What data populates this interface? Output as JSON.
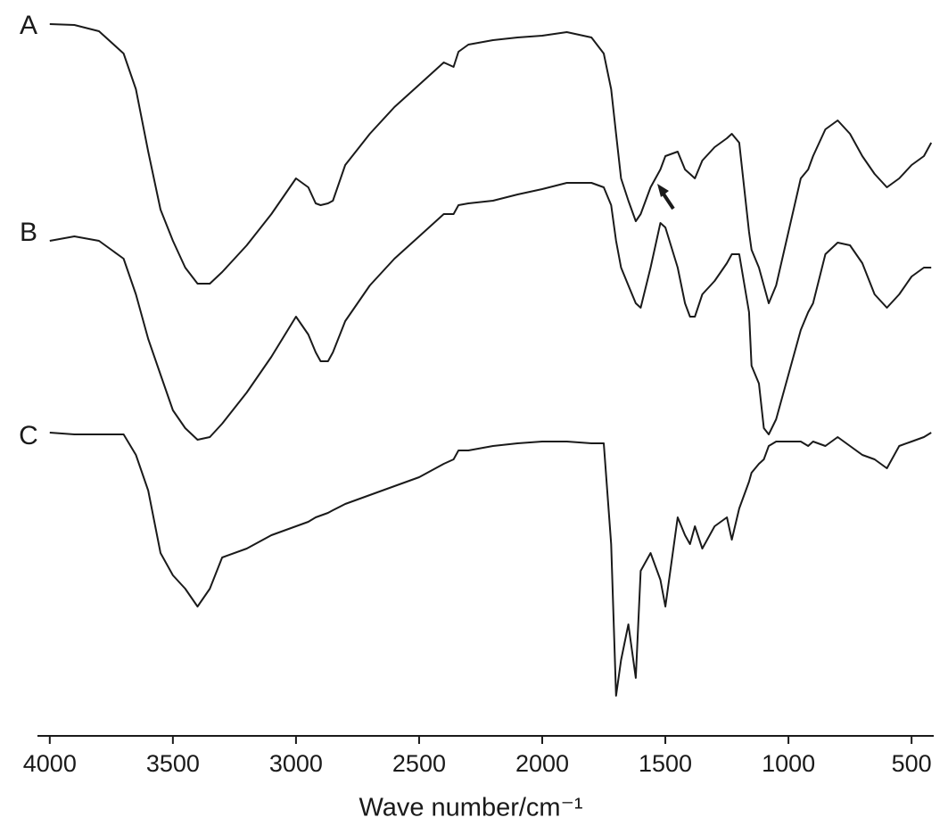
{
  "chart_data": {
    "type": "line",
    "xlabel": "Wave number/cm⁻¹",
    "x": [
      4000,
      3900,
      3800,
      3700,
      3650,
      3600,
      3550,
      3500,
      3450,
      3400,
      3350,
      3300,
      3200,
      3100,
      3000,
      2950,
      2920,
      2900,
      2870,
      2850,
      2800,
      2700,
      2600,
      2500,
      2400,
      2360,
      2340,
      2300,
      2200,
      2100,
      2000,
      1900,
      1800,
      1750,
      1720,
      1700,
      1680,
      1650,
      1620,
      1600,
      1560,
      1520,
      1500,
      1450,
      1420,
      1400,
      1380,
      1350,
      1300,
      1250,
      1230,
      1200,
      1160,
      1150,
      1120,
      1100,
      1080,
      1050,
      1000,
      950,
      920,
      900,
      850,
      800,
      750,
      700,
      650,
      600,
      550,
      500,
      450,
      420
    ],
    "xlim": [
      4050,
      410
    ],
    "xticks": [
      4000,
      3500,
      3000,
      2500,
      2000,
      1500,
      1000,
      500
    ],
    "ylim": [
      0,
      90
    ],
    "grid": false,
    "series": [
      {
        "name": "A",
        "color": "#1a1a1a",
        "values": [
          87.3,
          87.2,
          86.5,
          84,
          80,
          73,
          66.5,
          63,
          60,
          58.2,
          58.2,
          59.5,
          62.5,
          66,
          70,
          69,
          67.2,
          67,
          67.2,
          67.5,
          71.5,
          75,
          78,
          80.5,
          83,
          82.5,
          84.2,
          85,
          85.5,
          85.8,
          86,
          86.4,
          85.8,
          84,
          80,
          75,
          70,
          67.5,
          65.2,
          66,
          69,
          71,
          72.5,
          73,
          71,
          70.5,
          70,
          72,
          73.5,
          74.5,
          75,
          74,
          64,
          62,
          60,
          58,
          56,
          58,
          64,
          70,
          71,
          72.5,
          75.5,
          76.5,
          75,
          72.5,
          70.5,
          69,
          70,
          71.5,
          72.5,
          74
        ]
      },
      {
        "name": "B",
        "color": "#1a1a1a",
        "values": [
          63,
          63.5,
          63,
          61,
          57,
          52,
          48,
          44,
          42,
          40.7,
          41,
          42.5,
          46,
          50,
          54.5,
          52.5,
          50.5,
          49.5,
          49.5,
          50.5,
          54,
          58,
          61,
          63.5,
          66,
          66,
          67,
          67.2,
          67.5,
          68.2,
          68.8,
          69.5,
          69.5,
          69,
          67,
          63,
          60,
          58,
          56,
          55.5,
          60,
          65,
          64.5,
          60,
          56,
          54.5,
          54.5,
          57,
          58.5,
          60.5,
          61.5,
          61.5,
          55,
          49,
          47,
          42,
          41.3,
          43,
          48,
          53,
          55,
          56,
          61.5,
          62.8,
          62.5,
          60.5,
          57,
          55.5,
          57,
          59,
          60,
          60
        ]
      },
      {
        "name": "C",
        "color": "#1a1a1a",
        "values": [
          41.5,
          41.3,
          41.3,
          41.3,
          39,
          35,
          28,
          25.5,
          24,
          22,
          24,
          27.5,
          28.5,
          30,
          31,
          31.5,
          32,
          32.2,
          32.5,
          32.8,
          33.5,
          34.5,
          35.5,
          36.5,
          38,
          38.5,
          39.5,
          39.5,
          40,
          40.3,
          40.5,
          40.5,
          40.3,
          40.3,
          29,
          12,
          16,
          20,
          14,
          26,
          28,
          25,
          22,
          32,
          30,
          29,
          31,
          28.5,
          31,
          32,
          29.5,
          33,
          36,
          37,
          38,
          38.5,
          40,
          40.5,
          40.5,
          40.5,
          40,
          40.5,
          40,
          41,
          40,
          39,
          38.5,
          37.5,
          40,
          40.5,
          41,
          41.5
        ]
      }
    ]
  }
}
